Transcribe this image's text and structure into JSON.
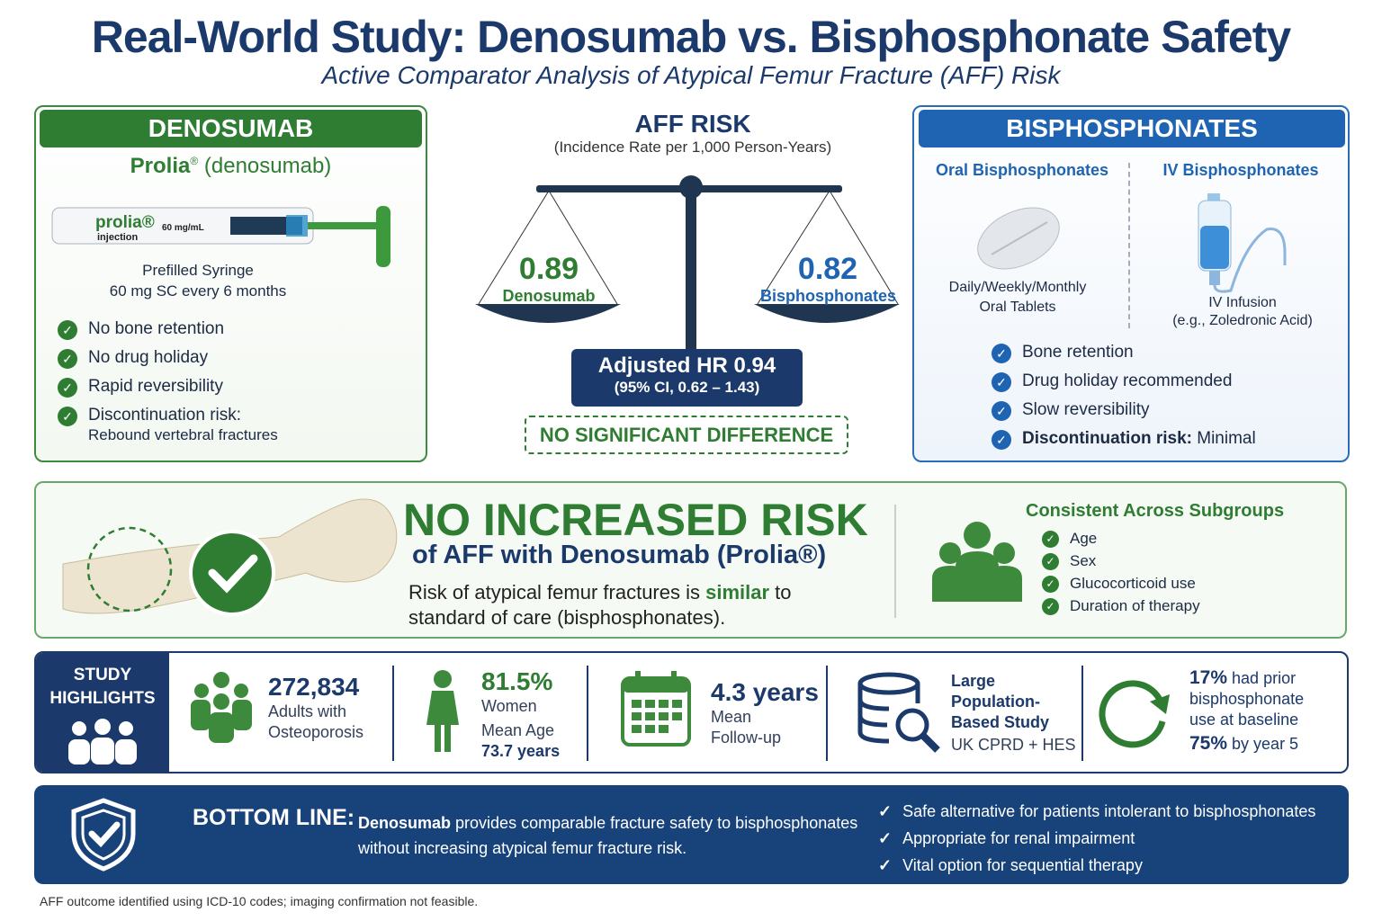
{
  "header": {
    "title": "Real-World Study: Denosumab vs. Bisphosphonate Safety",
    "subtitle": "Active Comparator Analysis of Atypical Femur Fracture (AFF) Risk"
  },
  "denosumab": {
    "heading": "DENOSUMAB",
    "brand": "Prolia",
    "reg": "®",
    "generic": "(denosumab)",
    "syringe_brand": "prolia®",
    "syringe_dose": "60 mg/mL",
    "syringe_type": "injection",
    "form": "Prefilled Syringe",
    "dosing": "60 mg SC every 6 months",
    "features": [
      {
        "label": "No bone retention"
      },
      {
        "label": "No drug holiday"
      },
      {
        "label": "Rapid reversibility"
      },
      {
        "label": "Discontinuation risk:",
        "detail": "Rebound vertebral fractures"
      }
    ]
  },
  "risk": {
    "title": "AFF RISK",
    "unit": "(Incidence Rate per 1,000 Person-Years)",
    "deno_value": "0.89",
    "deno_label": "Denosumab",
    "bis_value": "0.82",
    "bis_label": "Bisphosphonates",
    "hr_label": "Adjusted HR",
    "hr_value": "0.94",
    "ci": "(95% CI, 0.62 – 1.43)",
    "verdict": "NO SIGNIFICANT DIFFERENCE"
  },
  "bisphosphonates": {
    "heading": "BISPHOSPHONATES",
    "oral_title": "Oral Bisphosphonates",
    "oral_desc1": "Daily/Weekly/Monthly",
    "oral_desc2": "Oral Tablets",
    "iv_title": "IV Bisphosphonates",
    "iv_desc1": "IV Infusion",
    "iv_desc2": "(e.g., Zoledronic Acid)",
    "features": [
      {
        "label": "Bone retention"
      },
      {
        "label": "Drug holiday recommended"
      },
      {
        "label": "Slow reversibility"
      },
      {
        "label": "Discontinuation risk:",
        "detail": "Minimal"
      }
    ]
  },
  "finding": {
    "headline": "NO INCREASED RISK",
    "sub": "of AFF with Denosumab (Prolia®)",
    "body_pre": "Risk of atypical femur fractures is ",
    "body_em": "similar",
    "body_post": " to standard of care (bisphosphonates).",
    "subgroups_title": "Consistent Across Subgroups",
    "subgroups": [
      "Age",
      "Sex",
      "Glucocorticoid use",
      "Duration of therapy"
    ]
  },
  "highlights": {
    "label1": "STUDY",
    "label2": "HIGHLIGHTS",
    "adults_value": "272,834",
    "adults_l1": "Adults with",
    "adults_l2": "Osteoporosis",
    "women_value": "81.5%",
    "women_label": "Women",
    "age_label": "Mean Age",
    "age_value": "73.7 years",
    "followup_value": "4.3 years",
    "followup_l1": "Mean",
    "followup_l2": "Follow-up",
    "pop_l1": "Large",
    "pop_l2": "Population-",
    "pop_l3": "Based Study",
    "pop_source": "UK CPRD + HES",
    "prior_value": "17%",
    "prior_l1": " had prior",
    "prior_l2": "bisphosphonate",
    "prior_l3": "use at baseline",
    "year5_value": "75%",
    "year5_label": " by year 5"
  },
  "bottom": {
    "label": "BOTTOM LINE:",
    "drug": "Denosumab",
    "text1": " provides comparable fracture safety to bisphosphonates",
    "text2": "without increasing atypical femur fracture risk.",
    "points": [
      "Safe alternative for patients intolerant to bisphosphonates",
      "Appropriate for renal impairment",
      "Vital option for sequential therapy"
    ]
  },
  "footnote": "AFF outcome identified using ICD-10 codes; imaging confirmation not feasible.",
  "colors": {
    "navy": "#1b3a6b",
    "green": "#2f7d32",
    "blue": "#1f64b3"
  }
}
